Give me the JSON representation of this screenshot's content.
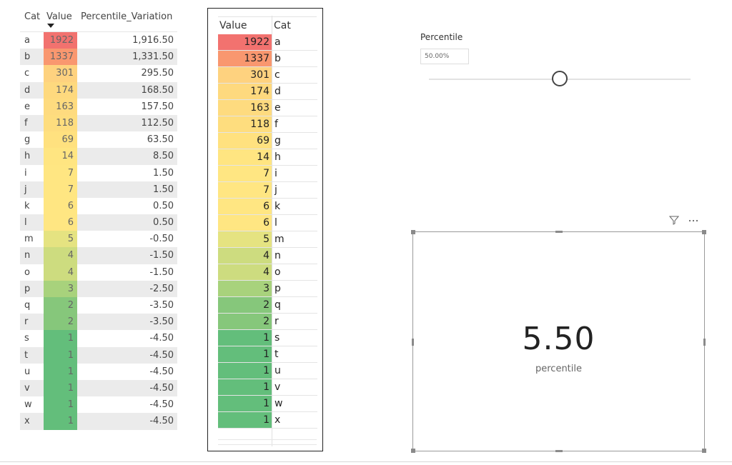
{
  "table1": {
    "headers": {
      "cat": "Cat",
      "value": "Value",
      "variation": "Percentile_Variation"
    },
    "rows": [
      {
        "cat": "a",
        "value": "1922",
        "variation": "1,916.50",
        "color": "#f2726f"
      },
      {
        "cat": "b",
        "value": "1337",
        "variation": "1,331.50",
        "color": "#f9976f"
      },
      {
        "cat": "c",
        "value": "301",
        "variation": "295.50",
        "color": "#fed27f"
      },
      {
        "cat": "d",
        "value": "174",
        "variation": "168.50",
        "color": "#fed97e"
      },
      {
        "cat": "e",
        "value": "163",
        "variation": "157.50",
        "color": "#fedb7f"
      },
      {
        "cat": "f",
        "value": "118",
        "variation": "112.50",
        "color": "#fedd7e"
      },
      {
        "cat": "g",
        "value": "69",
        "variation": "63.50",
        "color": "#ffe17f"
      },
      {
        "cat": "h",
        "value": "14",
        "variation": "8.50",
        "color": "#ffe581"
      },
      {
        "cat": "i",
        "value": "7",
        "variation": "1.50",
        "color": "#ffe682"
      },
      {
        "cat": "j",
        "value": "7",
        "variation": "1.50",
        "color": "#ffe682"
      },
      {
        "cat": "k",
        "value": "6",
        "variation": "0.50",
        "color": "#ffe682"
      },
      {
        "cat": "l",
        "value": "6",
        "variation": "0.50",
        "color": "#ffe682"
      },
      {
        "cat": "m",
        "value": "5",
        "variation": "-0.50",
        "color": "#e5e381"
      },
      {
        "cat": "n",
        "value": "4",
        "variation": "-1.50",
        "color": "#cddc7f"
      },
      {
        "cat": "o",
        "value": "4",
        "variation": "-1.50",
        "color": "#cddc7f"
      },
      {
        "cat": "p",
        "value": "3",
        "variation": "-2.50",
        "color": "#a8d27c"
      },
      {
        "cat": "q",
        "value": "2",
        "variation": "-3.50",
        "color": "#86c77b"
      },
      {
        "cat": "r",
        "value": "2",
        "variation": "-3.50",
        "color": "#86c77b"
      },
      {
        "cat": "s",
        "value": "1",
        "variation": "-4.50",
        "color": "#63be7b"
      },
      {
        "cat": "t",
        "value": "1",
        "variation": "-4.50",
        "color": "#63be7b"
      },
      {
        "cat": "u",
        "value": "1",
        "variation": "-4.50",
        "color": "#63be7b"
      },
      {
        "cat": "v",
        "value": "1",
        "variation": "-4.50",
        "color": "#63be7b"
      },
      {
        "cat": "w",
        "value": "1",
        "variation": "-4.50",
        "color": "#63be7b"
      },
      {
        "cat": "x",
        "value": "1",
        "variation": "-4.50",
        "color": "#63be7b"
      }
    ]
  },
  "table2": {
    "headers": {
      "value": "Value",
      "cat": "Cat"
    }
  },
  "slicer": {
    "title": "Percentile",
    "value": "50.00%",
    "fraction": 0.5
  },
  "card": {
    "value": "5.50",
    "label": "percentile",
    "icons": [
      "filter-icon",
      "more-options-icon"
    ]
  }
}
